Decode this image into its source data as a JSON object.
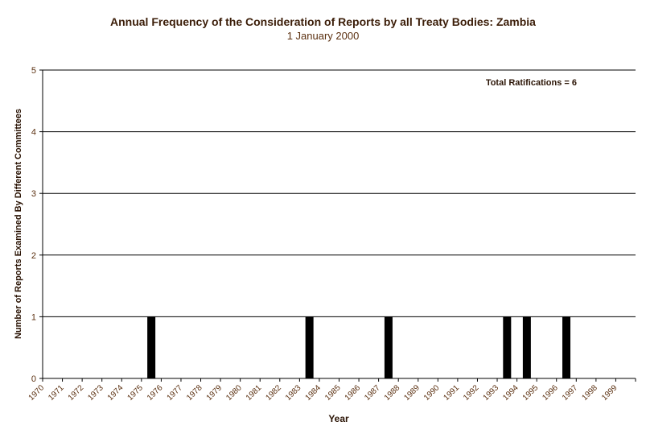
{
  "chart_data": {
    "type": "bar",
    "title": "Annual Frequency of the Consideration of Reports by all Treaty Bodies: Zambia",
    "subtitle": "1 January 2000",
    "xlabel": "Year",
    "ylabel": "Number of Reports Examined By Different Committees",
    "annotation": "Total Ratifications = 6",
    "ylim": [
      0,
      5
    ],
    "yticks": [
      "0",
      "1",
      "2",
      "3",
      "4",
      "5"
    ],
    "grid": true,
    "categories": [
      "1970",
      "1971",
      "1972",
      "1973",
      "1974",
      "1975",
      "1976",
      "1977",
      "1978",
      "1979",
      "1980",
      "1981",
      "1982",
      "1983",
      "1984",
      "1985",
      "1986",
      "1987",
      "1988",
      "1989",
      "1990",
      "1991",
      "1992",
      "1993",
      "1994",
      "1995",
      "1996",
      "1997",
      "1998",
      "1999"
    ],
    "tick_labels": [
      "1970",
      "1971",
      "1972",
      "1973",
      "1974",
      "1975",
      "1976",
      "1977",
      "1978",
      "1979",
      "1980",
      "1981",
      "1982",
      "1983",
      "1984",
      "1985",
      "1986",
      "1987",
      "1988",
      "1989",
      "1990",
      "1991",
      "1992",
      "1993",
      "1994",
      "1995",
      "1996",
      "1997",
      "1998",
      "1999"
    ],
    "values": [
      0,
      0,
      0,
      0,
      0,
      1,
      0,
      0,
      0,
      0,
      0,
      0,
      0,
      1,
      0,
      0,
      0,
      1,
      0,
      0,
      0,
      0,
      0,
      1,
      1,
      0,
      1,
      0,
      0,
      0
    ],
    "bar_color": "#000000",
    "grid_color": "#000000",
    "text_color": "#5b3010"
  }
}
